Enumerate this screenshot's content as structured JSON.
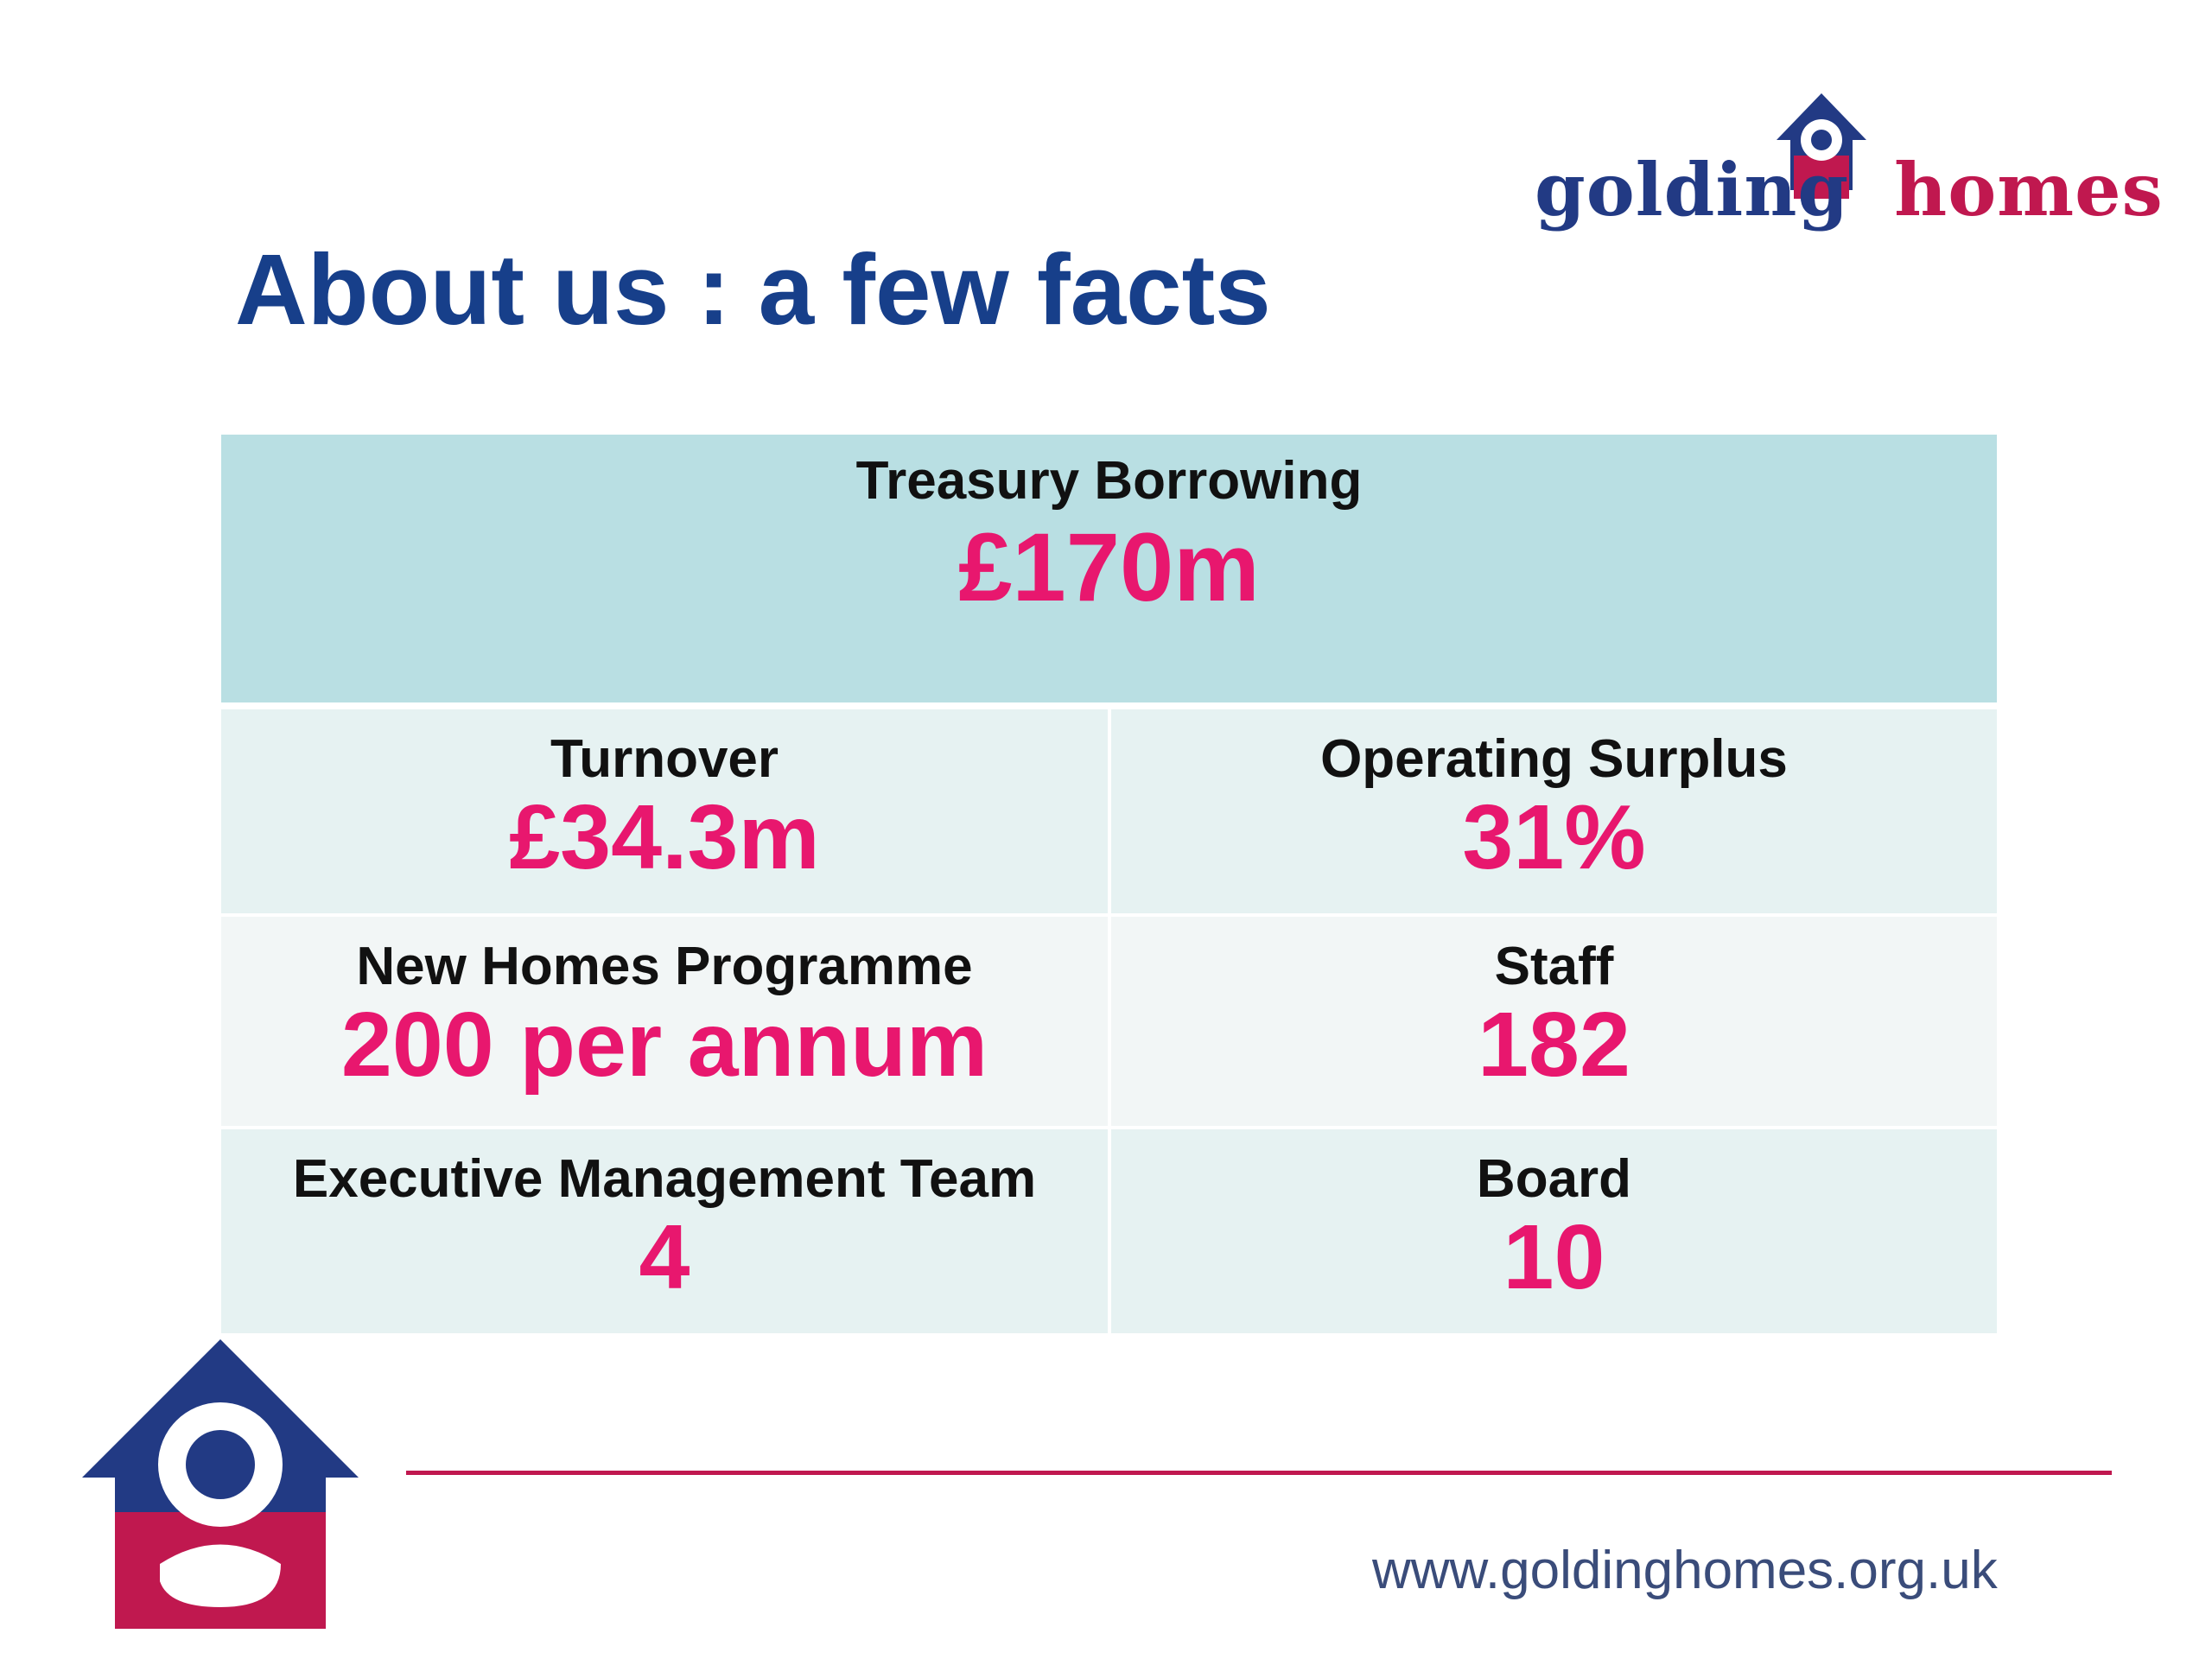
{
  "brand": {
    "name_part1": "golding",
    "name_part2": "homes",
    "primary_color": "#223a84",
    "accent_color": "#c0184f"
  },
  "page": {
    "title": "About us : a few facts"
  },
  "facts": {
    "treasury": {
      "label": "Treasury Borrowing",
      "value": "£170m"
    },
    "turnover": {
      "label": "Turnover",
      "value": "£34.3m"
    },
    "operating_surplus": {
      "label": "Operating Surplus",
      "value": "31%"
    },
    "new_homes": {
      "label": "New Homes Programme",
      "value": "200 per annum"
    },
    "staff": {
      "label": "Staff",
      "value": "182"
    },
    "exec_team": {
      "label": "Executive Management Team",
      "value": "4"
    },
    "board": {
      "label": "Board",
      "value": "10"
    }
  },
  "colors": {
    "label_text": "#111111",
    "value_text": "#e8176e",
    "title_text": "#173f8a",
    "header_cell_bg": "#b9dfe3",
    "row_bg": "#e6f2f2"
  },
  "footer": {
    "url": "www.goldinghomes.org.uk"
  },
  "icons": [
    "house-g-logo-icon"
  ]
}
